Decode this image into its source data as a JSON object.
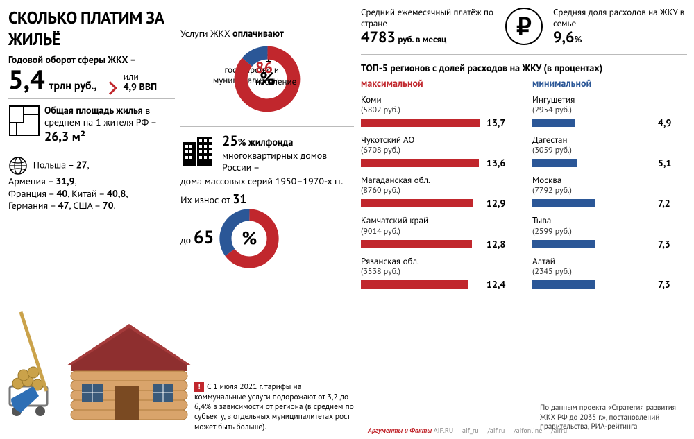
{
  "colors": {
    "red": "#c1272d",
    "blue": "#2b5797",
    "dark": "#000000",
    "grey": "#bbbbbb",
    "house_wall": "#d9a46b",
    "house_roof": "#a43a3a",
    "shovel_handle": "#caa24a",
    "shovel_blade": "#2e6fb5"
  },
  "title": "СКОЛЬКО ПЛАТИМ ЗА ЖИЛЬЁ",
  "turnover": {
    "label": "Годовой оборот сферы ЖКХ –",
    "value": "5,4",
    "unit": "трлн руб.,",
    "or_word": "или",
    "gdp": "4,9 ВВП"
  },
  "avg_area": {
    "caption_prefix": "Общая площадь жилья",
    "caption_rest": " в среднем на 1 жителя РФ – ",
    "value": "26,3 м²"
  },
  "countries_line1": "Польша – 27,",
  "countries_line2": "Армения – 31,9,",
  "countries_line3": "Франция – 40, Китай – 40,8,",
  "countries_line4": "Германия – 47, США – 70.",
  "countries_bold": {
    "poland": "27",
    "armenia": "31,9",
    "france": "40",
    "china": "40,8",
    "germany": "47",
    "usa": "70"
  },
  "payers": {
    "title": "Услуги ЖКХ оплачивают",
    "type": "pie",
    "slices": [
      {
        "label_value": "14",
        "label_text": "государство и муниципалитеты",
        "percent": 14,
        "color": "#2b5797"
      },
      {
        "label_value": "86",
        "label_text": "население",
        "percent": 86,
        "color": "#c1272d"
      }
    ],
    "center_symbol": "%"
  },
  "stock": {
    "value": "25",
    "value_suffix": "% жилфонда",
    "line2": "многоквартирных домов России –",
    "line3": "дома массовых серий 1950–1970-х гг.",
    "wear_prefix": "Их износ от ",
    "wear_from": "31",
    "wear_to_prefix": "до ",
    "wear_to": "65",
    "wear_suffix": "%",
    "donut": {
      "type": "pie",
      "slices": [
        {
          "percent": 65,
          "color": "#c1272d"
        },
        {
          "percent": 35,
          "color": "#2b5797"
        }
      ],
      "center": "%"
    }
  },
  "monthly": {
    "label": "Средний ежемесячный платёж по стране –",
    "value": "4783",
    "unit": "руб. в месяц"
  },
  "share": {
    "label": "Средняя доля расходов на ЖКУ в семье –",
    "value": "9,6",
    "unit": "%"
  },
  "top5": {
    "title": "ТОП-5 регионов с долей расходов на ЖКУ (в процентах)",
    "max_label": "максимальной",
    "min_label": "минимальной",
    "bar_scale_max": 14.0,
    "max": [
      {
        "name": "Коми",
        "sub": "(5802 руб.)",
        "value": 13.7,
        "text": "13,7"
      },
      {
        "name": "Чукотский АО",
        "sub": "(6708 руб.)",
        "value": 13.6,
        "text": "13,6"
      },
      {
        "name": "Магаданская обл.",
        "sub": "(8760 руб.)",
        "value": 12.9,
        "text": "12,9"
      },
      {
        "name": "Камчатский край",
        "sub": "(9014 руб.)",
        "value": 12.8,
        "text": "12,8"
      },
      {
        "name": "Рязанская обл.",
        "sub": "(3538 руб.)",
        "value": 12.4,
        "text": "12,4"
      }
    ],
    "max_color": "#c1272d",
    "min": [
      {
        "name": "Ингушетия",
        "sub": "(2954 руб.)",
        "value": 4.9,
        "text": "4,9"
      },
      {
        "name": "Дагестан",
        "sub": "(3059 руб.)",
        "value": 5.1,
        "text": "5,1"
      },
      {
        "name": "Москва",
        "sub": "(7792 руб.)",
        "value": 7.2,
        "text": "7,2"
      },
      {
        "name": "Тыва",
        "sub": "(2599 руб.)",
        "value": 7.3,
        "text": "7,3"
      },
      {
        "name": "Алтай",
        "sub": "(2345 руб.)",
        "value": 7.3,
        "text": "7,3"
      }
    ],
    "min_color": "#2b5797"
  },
  "warning": "С 1 июля 2021 г. тарифы на коммунальные услуги подорожают от 3,2 до 6,4% в зависимости от региона (в среднем по субъекту, в отдельных муниципалитетах рост может быть больше).",
  "source": "По данным проекта «Стратегия развития ЖКХ РФ до 2035 г.», постановлений правительства, РИА-рейтинга",
  "footer": {
    "brand": "Аргументы и Факты",
    "site": "AIF.RU",
    "links": [
      "aif_ru",
      "/aif.ru",
      "/aifonline",
      "/aifru"
    ]
  }
}
